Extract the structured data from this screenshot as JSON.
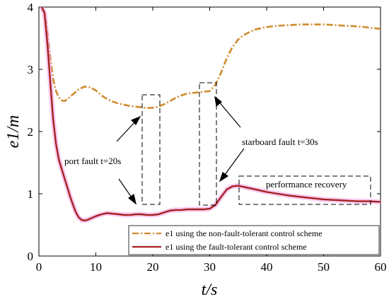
{
  "chart_data": {
    "type": "line",
    "xlabel": "t/s",
    "ylabel": "e1/m",
    "xlim": [
      0,
      60
    ],
    "ylim": [
      0,
      4
    ],
    "xticks": [
      0,
      10,
      20,
      30,
      40,
      50,
      60
    ],
    "yticks": [
      0,
      1,
      2,
      3,
      4
    ],
    "grid": false,
    "legend_position": "bottom-right",
    "series": [
      {
        "name": "e1 using the non-fault-tolerant control scheme",
        "color": "#D08A2C",
        "style": "dash-dot",
        "x": [
          0.5,
          1,
          1.5,
          2,
          2.5,
          3,
          3.5,
          4,
          4.5,
          5,
          6,
          7,
          8,
          9,
          10,
          11,
          12,
          13,
          14,
          15,
          16,
          17,
          18,
          19,
          20,
          21,
          22,
          23,
          24,
          25,
          26,
          27,
          28,
          29,
          30,
          31,
          32,
          33,
          34,
          35,
          36,
          37,
          38,
          40,
          42,
          44,
          46,
          48,
          50,
          52,
          54,
          56,
          58,
          60
        ],
        "y": [
          4.0,
          3.92,
          3.6,
          3.2,
          2.85,
          2.65,
          2.55,
          2.5,
          2.49,
          2.52,
          2.6,
          2.68,
          2.72,
          2.71,
          2.66,
          2.58,
          2.52,
          2.48,
          2.45,
          2.43,
          2.41,
          2.4,
          2.39,
          2.38,
          2.38,
          2.4,
          2.44,
          2.49,
          2.54,
          2.58,
          2.61,
          2.62,
          2.63,
          2.64,
          2.65,
          2.75,
          2.95,
          3.18,
          3.36,
          3.48,
          3.55,
          3.6,
          3.64,
          3.68,
          3.7,
          3.71,
          3.72,
          3.72,
          3.72,
          3.71,
          3.7,
          3.69,
          3.67,
          3.65
        ]
      },
      {
        "name": "e1 using the fault-tolerant control scheme",
        "color": "#A52222",
        "style": "solid",
        "x": [
          0.5,
          1,
          1.5,
          2,
          2.5,
          3,
          3.5,
          4,
          4.5,
          5,
          5.5,
          6,
          6.5,
          7,
          7.5,
          8,
          8.5,
          9,
          10,
          11,
          12,
          13,
          14,
          15,
          16,
          17,
          18,
          19,
          20,
          21,
          22,
          23,
          24,
          25,
          26,
          27,
          28,
          29,
          30,
          31,
          32,
          33,
          34,
          35,
          36,
          37,
          38,
          40,
          42,
          44,
          46,
          48,
          50,
          52,
          54,
          56,
          58,
          60
        ],
        "y": [
          4.0,
          3.9,
          3.4,
          2.8,
          2.2,
          1.8,
          1.55,
          1.4,
          1.25,
          1.1,
          0.95,
          0.82,
          0.7,
          0.62,
          0.58,
          0.57,
          0.58,
          0.6,
          0.64,
          0.67,
          0.69,
          0.68,
          0.67,
          0.66,
          0.66,
          0.67,
          0.67,
          0.66,
          0.66,
          0.67,
          0.7,
          0.73,
          0.74,
          0.74,
          0.75,
          0.75,
          0.75,
          0.75,
          0.76,
          0.82,
          0.95,
          1.07,
          1.12,
          1.13,
          1.11,
          1.09,
          1.07,
          1.03,
          1.0,
          0.97,
          0.95,
          0.93,
          0.91,
          0.9,
          0.89,
          0.88,
          0.88,
          0.87
        ]
      }
    ],
    "annotations": [
      {
        "text": "port fault t=20s"
      },
      {
        "text": "starboard fault t=30s"
      },
      {
        "text": "performance recovery"
      }
    ],
    "legend": [
      {
        "label": "e1 using the non-fault-tolerant control scheme"
      },
      {
        "label": "e1 using the fault-tolerant control scheme"
      }
    ]
  }
}
